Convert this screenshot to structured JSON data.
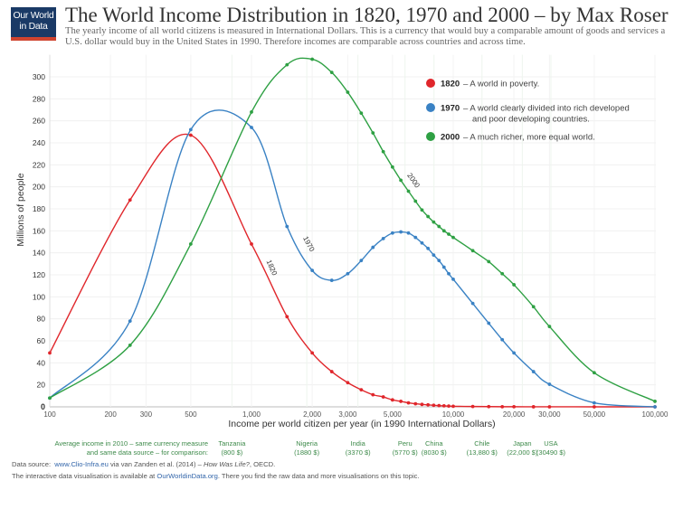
{
  "logo": {
    "line1": "Our World",
    "line2": "in Data"
  },
  "title": "The World Income Distribution in 1820, 1970 and 2000 – by Max Roser",
  "subtitle": "The yearly income of all world citizens is measured in International Dollars. This is a currency that would buy a comparable amount of goods and services a U.S. dollar would buy in the United States in 1990. Therefore incomes are comparable across countries and across time.",
  "chart_data": {
    "type": "line",
    "xlabel": "Income per world citizen per year (in 1990 International Dollars)",
    "ylabel": "Millions of people",
    "x_scale": "log",
    "xlim": [
      100,
      100000
    ],
    "ylim": [
      0,
      320
    ],
    "grid": true,
    "legend_position": "top-right",
    "x_ticks": [
      100,
      200,
      300,
      500,
      1000,
      2000,
      3000,
      5000,
      10000,
      20000,
      30000,
      50000,
      100000
    ],
    "x_tick_labels": [
      "100",
      "200",
      "300",
      "500",
      "1,000",
      "2,000",
      "3,000",
      "5,000",
      "10,000",
      "20,000",
      "30,000",
      "50,000",
      "100,000"
    ],
    "y_ticks": [
      0,
      20,
      40,
      60,
      80,
      100,
      120,
      140,
      160,
      180,
      200,
      220,
      240,
      260,
      280,
      300
    ],
    "x": [
      100,
      250,
      500,
      1000,
      1500,
      2000,
      2500,
      3000,
      3500,
      4000,
      4500,
      5000,
      5500,
      6000,
      6500,
      7000,
      7500,
      8000,
      8500,
      9000,
      9500,
      10000,
      12500,
      15000,
      17500,
      20000,
      25000,
      30000,
      50000,
      100000
    ],
    "series": [
      {
        "name": "1820",
        "color": "#e0262b",
        "label": "1820",
        "values": [
          49,
          188,
          247,
          148,
          82,
          49,
          32,
          22,
          15.5,
          11,
          9,
          6.3,
          5,
          3.6,
          2.8,
          2.2,
          1.8,
          1.4,
          1.1,
          0.9,
          0.7,
          0.5,
          0.3,
          0.2,
          0.1,
          0.1,
          0.05,
          0.03,
          0.01,
          0
        ]
      },
      {
        "name": "1970",
        "color": "#3a82c4",
        "label": "1970",
        "values": [
          8,
          78,
          252,
          254,
          164,
          124,
          115,
          121,
          133,
          145,
          153,
          158,
          159,
          158,
          154,
          149,
          144,
          138,
          133,
          127,
          121,
          116,
          94,
          76,
          61,
          49,
          32,
          20.5,
          3.6,
          0
        ]
      },
      {
        "name": "2000",
        "color": "#2ea043",
        "label": "2000",
        "values": [
          8,
          56,
          148,
          268,
          311,
          316,
          304,
          286,
          267,
          249,
          232,
          218,
          206,
          196,
          187,
          179,
          173,
          168,
          164,
          160,
          157,
          154,
          142,
          132,
          121,
          111,
          91,
          73,
          31,
          5
        ]
      }
    ],
    "legend": [
      {
        "year": "1820",
        "text": "– A world in poverty.",
        "text2": ""
      },
      {
        "year": "1970",
        "text": "– A world clearly divided into rich developed",
        "text2": "and poor developing countries."
      },
      {
        "year": "2000",
        "text": "– A much richer, more equal world.",
        "text2": ""
      }
    ],
    "comparison": {
      "label1": "Average income in 2010 – same currency measure",
      "label2": "and same data source – for comparison:",
      "color": "#3d8a4a",
      "countries": [
        {
          "name": "Tanzania",
          "value": "(800 $)",
          "income": 800
        },
        {
          "name": "Nigeria",
          "value": "(1880 $)",
          "income": 1880
        },
        {
          "name": "India",
          "value": "(3370 $)",
          "income": 3370
        },
        {
          "name": "Peru",
          "value": "(5770 $)",
          "income": 5770
        },
        {
          "name": "China",
          "value": "(8030 $)",
          "income": 8030
        },
        {
          "name": "Chile",
          "value": "(13,880 $)",
          "income": 13880
        },
        {
          "name": "Japan",
          "value": "(22,000 $)",
          "income": 22000
        },
        {
          "name": "USA",
          "value": "(30490 $)",
          "income": 30490
        }
      ]
    }
  },
  "footer": {
    "source_prefix": "Data source:",
    "source_link": "www.Clio-Infra.eu",
    "source_mid": "via van Zanden et al. (2014) –",
    "source_book": "How Was Life?",
    "source_end": ", OECD.",
    "line2_prefix": "The interactive data visualisation is available at",
    "line2_link": "OurWorldinData.org",
    "line2_end": ". There you find the raw data and more visualisations on this topic."
  }
}
